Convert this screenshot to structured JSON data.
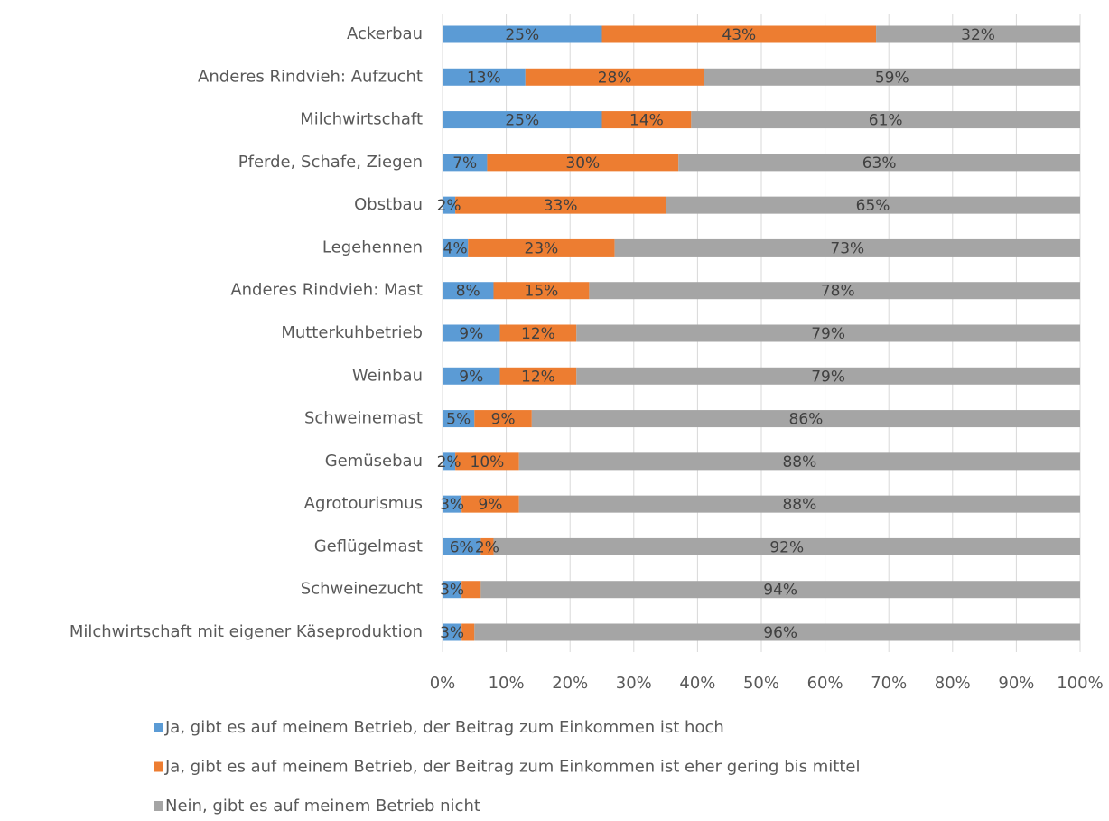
{
  "chart_data": {
    "type": "stacked_barh",
    "categories": [
      "Ackerbau",
      "Anderes Rindvieh: Aufzucht",
      "Milchwirtschaft",
      "Pferde, Schafe, Ziegen",
      "Obstbau",
      "Legehennen",
      "Anderes Rindvieh: Mast",
      "Mutterkuhbetrieb",
      "Weinbau",
      "Schweinemast",
      "Gemüsebau",
      "Agrotourismus",
      "Geflügelmast",
      "Schweinezucht",
      "Milchwirtschaft mit eigener Käseproduktion"
    ],
    "series": [
      {
        "name": "Ja, gibt es auf meinem Betrieb, der Beitrag zum Einkommen ist hoch",
        "color": "#5b9bd5",
        "values": [
          25,
          13,
          25,
          7,
          2,
          4,
          8,
          9,
          9,
          5,
          2,
          3,
          6,
          3,
          3
        ],
        "value_labels": [
          "25%",
          "13%",
          "25%",
          "7%",
          "2%",
          "4%",
          "8%",
          "9%",
          "9%",
          "5%",
          "2%",
          "3%",
          "6%",
          "3%",
          "3%"
        ]
      },
      {
        "name": "Ja, gibt es auf meinem Betrieb, der Beitrag zum Einkommen ist eher gering bis mittel",
        "color": "#ed7d31",
        "values": [
          43,
          28,
          14,
          30,
          33,
          23,
          15,
          12,
          12,
          9,
          10,
          9,
          2,
          3,
          2
        ],
        "value_labels": [
          "43%",
          "28%",
          "14%",
          "30%",
          "33%",
          "23%",
          "15%",
          "12%",
          "12%",
          "9%",
          "10%",
          "9%",
          "2%",
          null,
          null
        ]
      },
      {
        "name": "Nein, gibt  es auf meinem Betrieb nicht",
        "color": "#a5a5a5",
        "values": [
          32,
          59,
          61,
          63,
          65,
          73,
          78,
          79,
          79,
          86,
          88,
          88,
          92,
          94,
          96
        ],
        "value_labels": [
          "32%",
          "59%",
          "61%",
          "63%",
          "65%",
          "73%",
          "78%",
          "79%",
          "79%",
          "86%",
          "88%",
          "88%",
          "92%",
          "94%",
          "96%"
        ]
      }
    ],
    "xlim": [
      0,
      100
    ],
    "xticks": [
      {
        "value": 0,
        "label": "0%"
      },
      {
        "value": 10,
        "label": "10%"
      },
      {
        "value": 20,
        "label": "20%"
      },
      {
        "value": 30,
        "label": "30%"
      },
      {
        "value": 40,
        "label": "40%"
      },
      {
        "value": 50,
        "label": "50%"
      },
      {
        "value": 60,
        "label": "60%"
      },
      {
        "value": 70,
        "label": "70%"
      },
      {
        "value": 80,
        "label": "80%"
      },
      {
        "value": 90,
        "label": "90%"
      },
      {
        "value": 100,
        "label": "100%"
      }
    ],
    "grid": true,
    "legend": "bottom"
  }
}
